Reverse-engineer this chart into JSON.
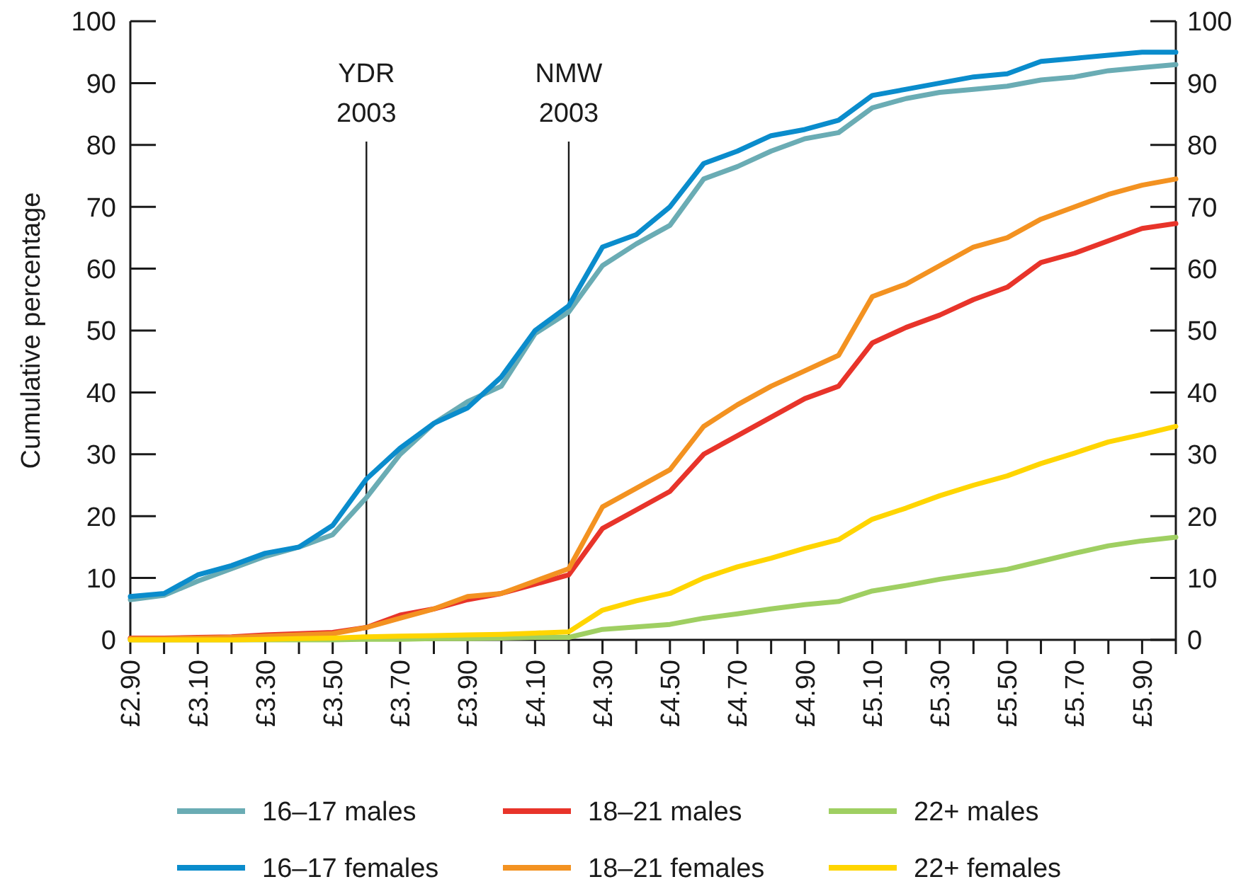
{
  "chart_data": {
    "type": "line",
    "ylabel": "Cumulative percentage",
    "x": [
      2.9,
      3.0,
      3.1,
      3.2,
      3.3,
      3.4,
      3.5,
      3.6,
      3.7,
      3.8,
      3.9,
      4.0,
      4.1,
      4.2,
      4.3,
      4.4,
      4.5,
      4.6,
      4.7,
      4.8,
      4.9,
      5.0,
      5.1,
      5.2,
      5.3,
      5.4,
      5.5,
      5.6,
      5.7,
      5.8,
      5.9,
      6.0
    ],
    "xlim": [
      2.9,
      6.0
    ],
    "xticks": [
      {
        "value": 2.9,
        "label": "£2.90"
      },
      {
        "value": 3.0,
        "label": null
      },
      {
        "value": 3.1,
        "label": "£3.10"
      },
      {
        "value": 3.2,
        "label": null
      },
      {
        "value": 3.3,
        "label": "£3.30"
      },
      {
        "value": 3.4,
        "label": null
      },
      {
        "value": 3.5,
        "label": "£3.50"
      },
      {
        "value": 3.6,
        "label": null
      },
      {
        "value": 3.7,
        "label": "£3.70"
      },
      {
        "value": 3.8,
        "label": null
      },
      {
        "value": 3.9,
        "label": "£3.90"
      },
      {
        "value": 4.0,
        "label": null
      },
      {
        "value": 4.1,
        "label": "£4.10"
      },
      {
        "value": 4.2,
        "label": null
      },
      {
        "value": 4.3,
        "label": "£4.30"
      },
      {
        "value": 4.4,
        "label": null
      },
      {
        "value": 4.5,
        "label": "£4.50"
      },
      {
        "value": 4.6,
        "label": null
      },
      {
        "value": 4.7,
        "label": "£4.70"
      },
      {
        "value": 4.8,
        "label": null
      },
      {
        "value": 4.9,
        "label": "£4.90"
      },
      {
        "value": 5.0,
        "label": null
      },
      {
        "value": 5.1,
        "label": "£5.10"
      },
      {
        "value": 5.2,
        "label": null
      },
      {
        "value": 5.3,
        "label": "£5.30"
      },
      {
        "value": 5.4,
        "label": null
      },
      {
        "value": 5.5,
        "label": "£5.50"
      },
      {
        "value": 5.6,
        "label": null
      },
      {
        "value": 5.7,
        "label": "£5.70"
      },
      {
        "value": 5.8,
        "label": null
      },
      {
        "value": 5.9,
        "label": "£5.90"
      },
      {
        "value": 6.0,
        "label": null
      }
    ],
    "ylim": [
      0,
      100
    ],
    "yticks": [
      0,
      10,
      20,
      30,
      40,
      50,
      60,
      70,
      80,
      90,
      100
    ],
    "y2lim": [
      0,
      100
    ],
    "y2ticks": [
      0,
      10,
      20,
      30,
      40,
      50,
      60,
      70,
      80,
      90,
      100
    ],
    "grid": false,
    "legend": "bottom",
    "marker": "none",
    "line_style": "solid",
    "ref_lines": [
      {
        "axis": "x",
        "value": 3.6,
        "label": "YDR 2003",
        "color": "#1a1a1a"
      },
      {
        "axis": "x",
        "value": 4.2,
        "label": "NMW 2003",
        "color": "#1a1a1a"
      }
    ],
    "series": [
      {
        "name": "16–17 males",
        "color": "#6aacb4",
        "values": [
          6.5,
          7.2,
          9.5,
          11.5,
          13.5,
          15,
          17,
          23,
          30,
          35,
          38.5,
          41,
          49.5,
          53,
          60.5,
          64,
          67,
          74.5,
          76.5,
          79,
          81,
          82,
          86,
          87.5,
          88.5,
          89,
          89.5,
          90.5,
          91,
          92,
          92.5,
          93
        ]
      },
      {
        "name": "18–21 males",
        "color": "#e8342a",
        "values": [
          0.3,
          0.3,
          0.4,
          0.5,
          0.8,
          1,
          1.2,
          2,
          4,
          5,
          6.5,
          7.5,
          9,
          10.5,
          18,
          21,
          24,
          30,
          33,
          36,
          39,
          41,
          48,
          50.5,
          52.5,
          55,
          57,
          61,
          62.5,
          64.5,
          66.5,
          67.3
        ]
      },
      {
        "name": "22+ males",
        "color": "#9fcf62",
        "values": [
          0,
          0,
          0,
          0,
          0,
          0,
          0,
          0.1,
          0.1,
          0.2,
          0.2,
          0.3,
          0.4,
          0.4,
          1.7,
          2.1,
          2.5,
          3.5,
          4.2,
          5,
          5.7,
          6.2,
          7.9,
          8.8,
          9.8,
          10.6,
          11.4,
          12.7,
          14,
          15.2,
          16,
          16.6
        ]
      },
      {
        "name": "16–17 females",
        "color": "#0a8ccc",
        "values": [
          7,
          7.5,
          10.5,
          12,
          14,
          15,
          18.5,
          26,
          31,
          35,
          37.5,
          42.5,
          50,
          54,
          63.5,
          65.5,
          70,
          77,
          79,
          81.5,
          82.5,
          84,
          88,
          89,
          90,
          91,
          91.5,
          93.5,
          94,
          94.5,
          95,
          95
        ]
      },
      {
        "name": "18–21 females",
        "color": "#f39221",
        "values": [
          0.2,
          0.2,
          0.3,
          0.4,
          0.6,
          0.8,
          1,
          2,
          3.5,
          5,
          7,
          7.5,
          9.5,
          11.5,
          21.5,
          24.5,
          27.5,
          34.5,
          38,
          41,
          43.5,
          46,
          55.5,
          57.5,
          60.5,
          63.5,
          65,
          68,
          70,
          72,
          73.5,
          74.5
        ]
      },
      {
        "name": "22+ females",
        "color": "#ffd500",
        "values": [
          0,
          0,
          0,
          0,
          0.1,
          0.2,
          0.3,
          0.5,
          0.6,
          0.7,
          0.8,
          0.9,
          1.1,
          1.3,
          4.8,
          6.3,
          7.5,
          10,
          11.8,
          13.2,
          14.8,
          16.2,
          19.5,
          21.3,
          23.3,
          25,
          26.5,
          28.5,
          30.2,
          32,
          33.2,
          34.5
        ]
      }
    ]
  }
}
